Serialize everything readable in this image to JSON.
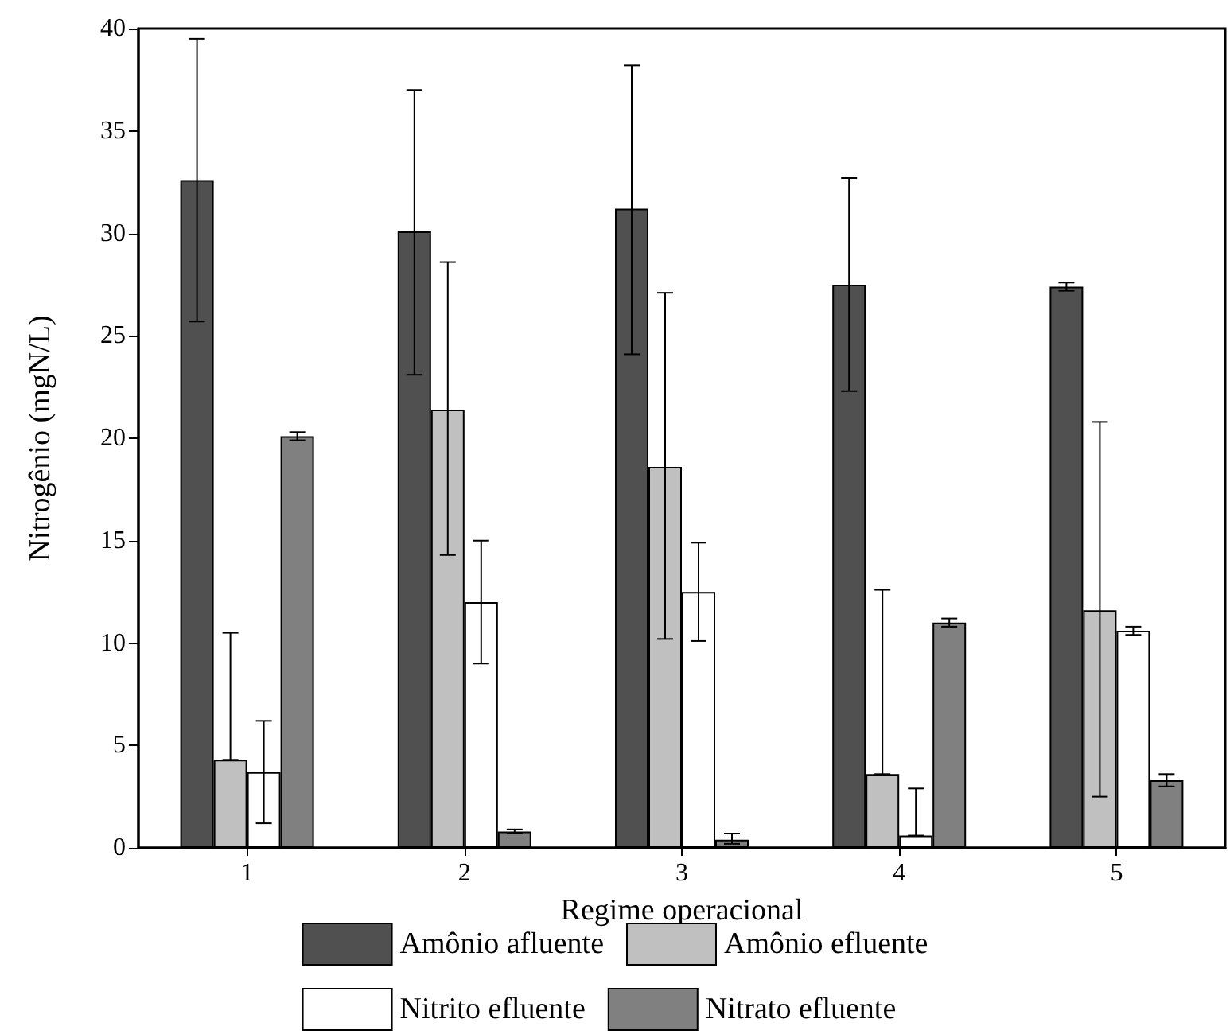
{
  "chart_data": {
    "type": "bar",
    "xlabel": "Regime operacional",
    "ylabel": "Nitrogênio (mgN/L)",
    "categories": [
      "1",
      "2",
      "3",
      "4",
      "5"
    ],
    "series": [
      {
        "name": "Amônio afluente",
        "color": "#505050",
        "values": [
          32.6,
          30.1,
          31.2,
          27.5,
          27.4
        ],
        "errors": [
          [
            25.7,
            39.5
          ],
          [
            23.1,
            37.0
          ],
          [
            24.1,
            38.2
          ],
          [
            22.3,
            32.7
          ],
          [
            27.2,
            27.6
          ]
        ]
      },
      {
        "name": "Amônio efluente",
        "color": "#c0c0c0",
        "values": [
          4.3,
          21.4,
          18.6,
          3.6,
          11.6
        ],
        "errors": [
          [
            4.3,
            10.5
          ],
          [
            14.3,
            28.6
          ],
          [
            10.2,
            27.1
          ],
          [
            3.6,
            12.6
          ],
          [
            2.5,
            20.8
          ]
        ]
      },
      {
        "name": "Nitrito efluente",
        "color": "#ffffff",
        "values": [
          3.7,
          12.0,
          12.5,
          0.6,
          10.6
        ],
        "errors": [
          [
            1.2,
            6.2
          ],
          [
            9.0,
            15.0
          ],
          [
            10.1,
            14.9
          ],
          [
            0.6,
            2.9
          ],
          [
            10.4,
            10.8
          ]
        ]
      },
      {
        "name": "Nitrato efluente",
        "color": "#808080",
        "values": [
          20.1,
          0.8,
          0.4,
          11.0,
          3.3
        ],
        "errors": [
          [
            19.9,
            20.3
          ],
          [
            0.7,
            0.9
          ],
          [
            0.2,
            0.7
          ],
          [
            10.8,
            11.2
          ],
          [
            3.0,
            3.6
          ]
        ]
      }
    ],
    "ylim": [
      0,
      40
    ],
    "yticks": [
      0,
      5,
      10,
      15,
      20,
      25,
      30,
      35,
      40
    ],
    "grid": false,
    "legend": "bottom"
  }
}
